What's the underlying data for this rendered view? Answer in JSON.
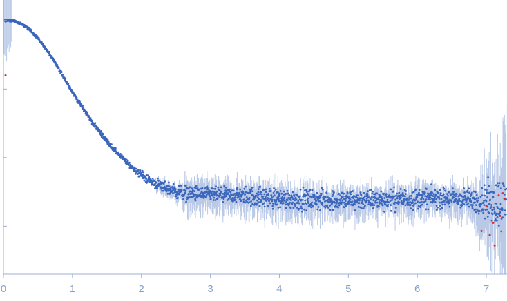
{
  "chart_data": {
    "type": "scatter",
    "title": "",
    "xlabel": "",
    "ylabel": "",
    "x_ticks": [
      "0",
      "1",
      "2",
      "3",
      "4",
      "5",
      "6",
      "7"
    ],
    "xlim": [
      0,
      7.3
    ],
    "ylog": true,
    "ylim_log10": [
      -2.7,
      1.3
    ],
    "y_ticks_log10": [
      1.0,
      0.0,
      -1.0,
      -2.0
    ],
    "y_tick_labels": [
      "",
      "",
      "",
      ""
    ],
    "grid": false,
    "legend": "none",
    "colors": {
      "points": "#3a66bd",
      "error_bars": "#b8c8e6",
      "outliers": "#e0242a",
      "axis": "#9fb0d4"
    },
    "series": [
      {
        "x": [
          0.04,
          0.1,
          0.15,
          0.2,
          0.3,
          0.4,
          0.5,
          0.6,
          0.7,
          0.8,
          0.9,
          1.0,
          1.1,
          1.2,
          1.3,
          1.4,
          1.5,
          1.6,
          1.7,
          1.8,
          1.9,
          2.0,
          2.1,
          2.2,
          2.3,
          2.4,
          2.5,
          2.6,
          2.8,
          3.0,
          3.2,
          3.5,
          3.8,
          4.0,
          4.3,
          4.6,
          5.0,
          5.4,
          5.8,
          6.2,
          6.6,
          6.9,
          7.1,
          7.25
        ],
        "log10_y": [
          1.0,
          1.0,
          1.0,
          0.97,
          0.93,
          0.85,
          0.74,
          0.61,
          0.46,
          0.3,
          0.13,
          -0.04,
          -0.2,
          -0.35,
          -0.5,
          -0.63,
          -0.76,
          -0.88,
          -0.98,
          -1.08,
          -1.17,
          -1.25,
          -1.32,
          -1.38,
          -1.42,
          -1.46,
          -1.49,
          -1.51,
          -1.53,
          -1.54,
          -1.55,
          -1.56,
          -1.58,
          -1.6,
          -1.61,
          -1.62,
          -1.62,
          -1.61,
          -1.6,
          -1.59,
          -1.6,
          -1.63,
          -1.65,
          -1.66
        ]
      }
    ],
    "outlier_points": {
      "x": [
        0.03,
        6.93,
        7.0,
        7.05,
        7.1,
        7.12,
        7.18,
        7.2,
        7.24,
        7.27
      ],
      "log10_y": [
        0.2,
        -2.07,
        -1.7,
        -2.13,
        -1.95,
        -2.28,
        -1.55,
        -1.85,
        -1.52,
        -1.6
      ]
    }
  }
}
